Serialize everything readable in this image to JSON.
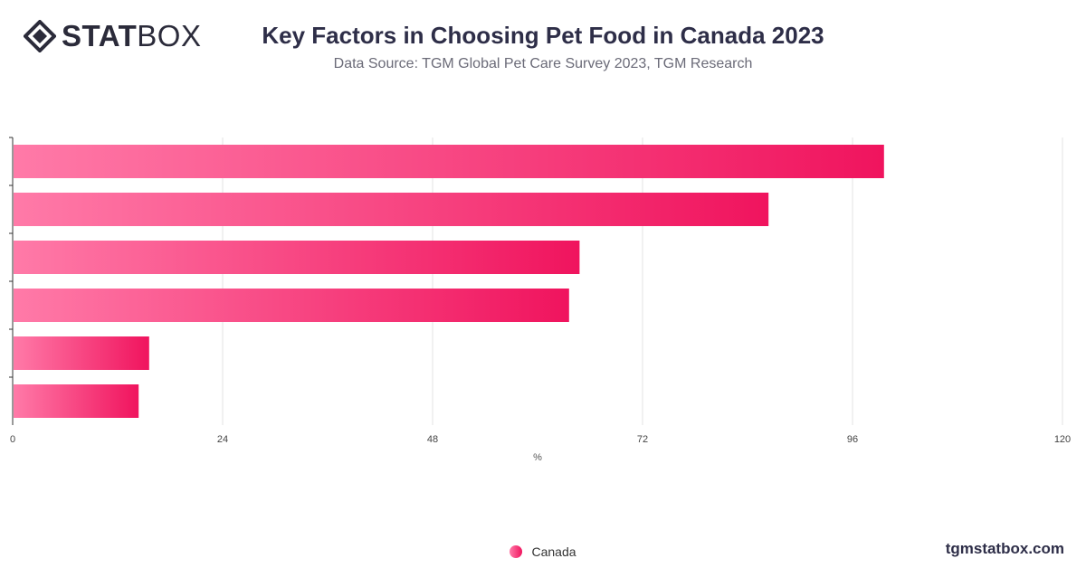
{
  "header": {
    "logo_bold": "STAT",
    "logo_light": "BOX",
    "title": "Key Factors in Choosing Pet Food in Canada 2023",
    "subtitle": "Data Source: TGM Global Pet Care Survey 2023, TGM Research"
  },
  "footer": {
    "brand": "tgmstatbox.com"
  },
  "colors": {
    "bar_start": "#ff7aa8",
    "bar_end": "#f0145e",
    "grid": "#e3e3e3",
    "axis": "#333333"
  },
  "chart_data": {
    "type": "bar",
    "orientation": "horizontal",
    "title": "Key Factors in Choosing Pet Food in Canada 2023",
    "xlabel": "%",
    "ylabel": "",
    "xlim": [
      0,
      120
    ],
    "xticks": [
      0,
      24,
      48,
      72,
      96,
      120
    ],
    "grid": true,
    "legend_position": "bottom",
    "categories": [
      "",
      "",
      "",
      "",
      "",
      ""
    ],
    "series": [
      {
        "name": "Canada",
        "values": [
          99.6,
          86.4,
          64.8,
          63.6,
          15.6,
          14.4
        ]
      }
    ]
  }
}
